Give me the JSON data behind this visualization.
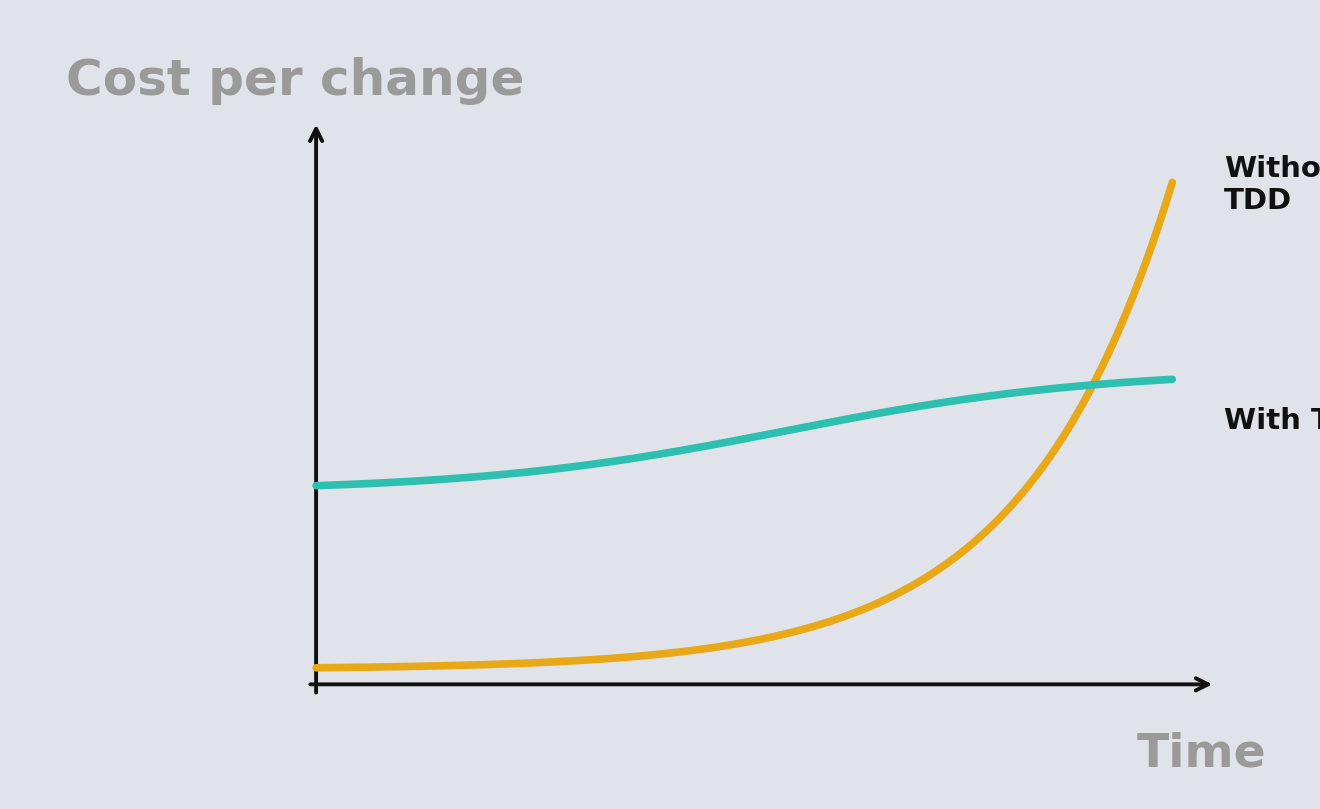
{
  "background_color": "#e0e4ea",
  "title": "Cost per change",
  "title_color": "#9a9a9a",
  "title_fontsize": 36,
  "title_fontweight": "bold",
  "xlabel": "Time",
  "xlabel_color": "#9a9a9a",
  "xlabel_fontsize": 34,
  "xlabel_fontweight": "bold",
  "without_tdd_label": "Without\nTDD",
  "with_tdd_label": "With TDD",
  "label_fontsize": 21,
  "label_fontweight": "bold",
  "label_color": "#111111",
  "without_tdd_color": "#E8A818",
  "with_tdd_color": "#2DBFB0",
  "line_width": 5.5,
  "axis_color": "#111111",
  "axis_linewidth": 2.8,
  "arrow_mutation_scale": 22
}
